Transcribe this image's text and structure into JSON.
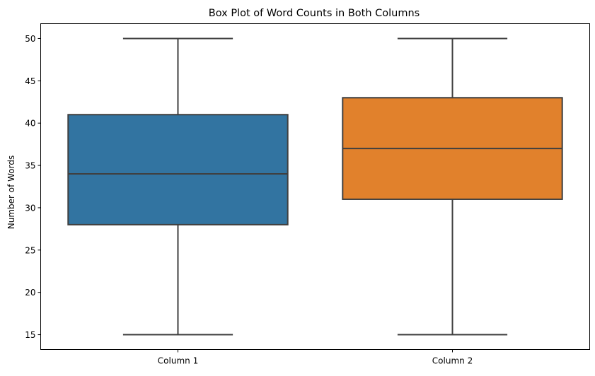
{
  "chart_data": {
    "type": "box",
    "title": "Box Plot of Word Counts in Both Columns",
    "xlabel": "",
    "ylabel": "Number of Words",
    "ylim": [
      13.25,
      51.75
    ],
    "yticks": [
      15,
      20,
      25,
      30,
      35,
      40,
      45,
      50
    ],
    "grid": false,
    "categories": [
      "Column 1",
      "Column 2"
    ],
    "boxes": [
      {
        "category": "Column 1",
        "min": 15,
        "q1": 28,
        "median": 34,
        "q3": 41,
        "max": 50,
        "color": "#3274a1"
      },
      {
        "category": "Column 2",
        "min": 15,
        "q1": 31,
        "median": 37,
        "q3": 43,
        "max": 50,
        "color": "#e1812c"
      }
    ],
    "line_color": "#3f3f3f"
  }
}
